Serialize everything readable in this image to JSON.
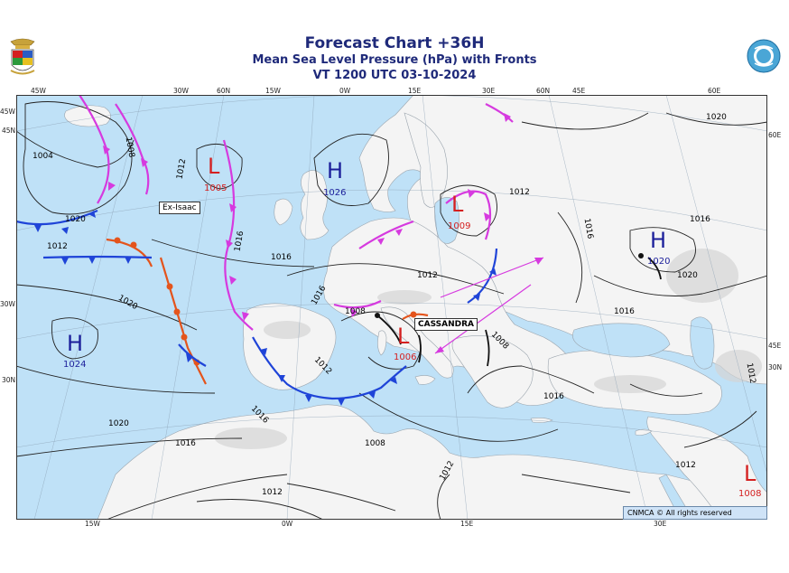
{
  "header": {
    "title": "Forecast Chart +36H",
    "subtitle": "Mean Sea Level Pressure (hPa) with Fronts",
    "valid_time": "VT 1200 UTC 03-10-2024"
  },
  "copyright": "CNMCA © All rights reserved",
  "colors": {
    "sea": "#bfe1f7",
    "land": "#f4f4f4",
    "high": "#1b1e9a",
    "low": "#d42020",
    "cold_front": "#1f44d8",
    "warm_front": "#e4541c",
    "occluded_front": "#d63adf",
    "isobar": "#222222"
  },
  "coordinates": {
    "top": [
      "45W",
      "30W",
      "60N",
      "15W",
      "0W",
      "15E",
      "30E",
      "60N",
      "45E",
      "60E"
    ],
    "left": [
      "45W",
      "45N",
      "30W",
      "30N"
    ],
    "right": [
      "60E",
      "45E",
      "30N"
    ],
    "bottom": [
      "15W",
      "0W",
      "15E",
      "30E"
    ]
  },
  "pressure_centers": [
    {
      "type": "L",
      "value": "1005"
    },
    {
      "type": "H",
      "value": "1026"
    },
    {
      "type": "L",
      "value": "1009"
    },
    {
      "type": "H",
      "value": "1020"
    },
    {
      "type": "H",
      "value": "1024"
    },
    {
      "type": "L",
      "value": "1006"
    },
    {
      "type": "L",
      "value": "1008"
    }
  ],
  "isobar_labels": [
    "1004",
    "1008",
    "1012",
    "1016",
    "1020",
    "1012",
    "1016",
    "1020",
    "1016",
    "1012",
    "1016",
    "1020",
    "1016",
    "1012",
    "1008",
    "1012",
    "1016",
    "1020",
    "1016",
    "1012",
    "1008",
    "1012",
    "1016",
    "1012",
    "1016",
    "1020",
    "1012",
    "1008"
  ],
  "storms": [
    "Ex-Isaac",
    "CASSANDRA"
  ]
}
